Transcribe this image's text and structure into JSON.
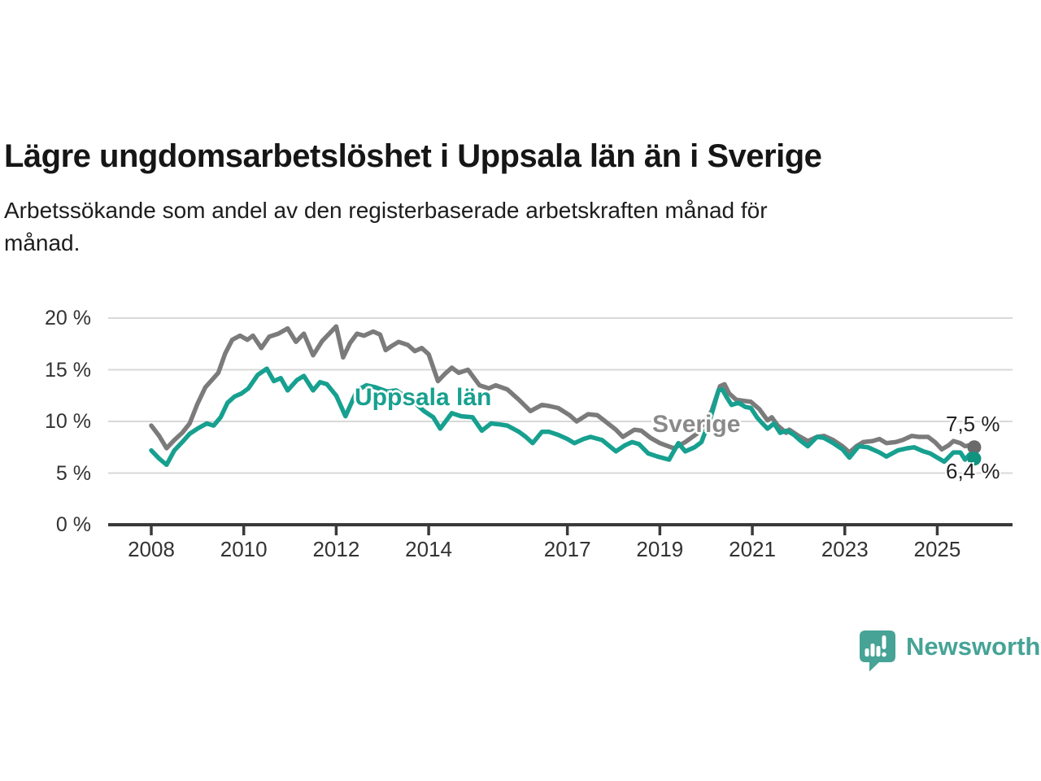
{
  "header": {
    "title": "Lägre ungdomsarbetslöshet i Uppsala län än i Sverige",
    "subtitle_lines": [
      "Arbetssökande som andel av den registerbaserade arbetskraften månad för",
      "månad."
    ]
  },
  "chart_data": {
    "type": "line",
    "title": "Lägre ungdomsarbetslöshet i Uppsala län än i Sverige",
    "x_label": "",
    "y_label": "",
    "y_unit": "%",
    "x_range": [
      2007.6,
      2026.6
    ],
    "y_range": [
      0,
      20
    ],
    "grid": "horizontal",
    "x_axis_ticks": [
      {
        "year": 2008,
        "label": "2008"
      },
      {
        "year": 2010,
        "label": "2010"
      },
      {
        "year": 2012,
        "label": "2012"
      },
      {
        "year": 2014,
        "label": "2014"
      },
      {
        "year": 2017,
        "label": "2017"
      },
      {
        "year": 2019,
        "label": "2019"
      },
      {
        "year": 2021,
        "label": "2021"
      },
      {
        "year": 2023,
        "label": "2023"
      },
      {
        "year": 2025,
        "label": "2025"
      }
    ],
    "y_axis_ticks": [
      {
        "value": 0,
        "label": "0 %"
      },
      {
        "value": 5,
        "label": "5 %"
      },
      {
        "value": 10,
        "label": "10 %"
      },
      {
        "value": 15,
        "label": "15 %"
      },
      {
        "value": 20,
        "label": "20 %"
      }
    ],
    "series": [
      {
        "name": "Sverige",
        "label": "Sverige",
        "color": "#7b7b7b",
        "label_color": "#8a8a8a",
        "dot_color": "#6a6a6a",
        "end_label": "7,5 %",
        "end_value": 7.5,
        "points": [
          [
            2008.0,
            9.6
          ],
          [
            2008.17,
            8.6
          ],
          [
            2008.33,
            7.4
          ],
          [
            2008.5,
            8.2
          ],
          [
            2008.67,
            8.9
          ],
          [
            2008.83,
            9.8
          ],
          [
            2009.0,
            11.7
          ],
          [
            2009.17,
            13.3
          ],
          [
            2009.33,
            14.1
          ],
          [
            2009.45,
            14.7
          ],
          [
            2009.6,
            16.6
          ],
          [
            2009.75,
            17.9
          ],
          [
            2009.92,
            18.3
          ],
          [
            2010.08,
            17.9
          ],
          [
            2010.2,
            18.3
          ],
          [
            2010.38,
            17.1
          ],
          [
            2010.55,
            18.2
          ],
          [
            2010.75,
            18.5
          ],
          [
            2010.95,
            19.0
          ],
          [
            2011.13,
            17.7
          ],
          [
            2011.3,
            18.5
          ],
          [
            2011.5,
            16.4
          ],
          [
            2011.7,
            17.8
          ],
          [
            2011.85,
            18.5
          ],
          [
            2012.0,
            19.2
          ],
          [
            2012.15,
            16.2
          ],
          [
            2012.3,
            17.6
          ],
          [
            2012.45,
            18.5
          ],
          [
            2012.6,
            18.3
          ],
          [
            2012.8,
            18.7
          ],
          [
            2012.95,
            18.4
          ],
          [
            2013.07,
            16.9
          ],
          [
            2013.2,
            17.3
          ],
          [
            2013.35,
            17.7
          ],
          [
            2013.55,
            17.4
          ],
          [
            2013.7,
            16.8
          ],
          [
            2013.85,
            17.1
          ],
          [
            2014.0,
            16.5
          ],
          [
            2014.2,
            13.9
          ],
          [
            2014.35,
            14.6
          ],
          [
            2014.5,
            15.2
          ],
          [
            2014.65,
            14.7
          ],
          [
            2014.85,
            15.0
          ],
          [
            2015.1,
            13.5
          ],
          [
            2015.3,
            13.2
          ],
          [
            2015.45,
            13.5
          ],
          [
            2015.7,
            13.1
          ],
          [
            2015.95,
            12.1
          ],
          [
            2016.2,
            11.0
          ],
          [
            2016.45,
            11.6
          ],
          [
            2016.6,
            11.5
          ],
          [
            2016.8,
            11.3
          ],
          [
            2017.05,
            10.6
          ],
          [
            2017.2,
            10.0
          ],
          [
            2017.45,
            10.7
          ],
          [
            2017.65,
            10.6
          ],
          [
            2017.85,
            9.9
          ],
          [
            2018.05,
            9.2
          ],
          [
            2018.2,
            8.5
          ],
          [
            2018.45,
            9.2
          ],
          [
            2018.6,
            9.1
          ],
          [
            2018.8,
            8.4
          ],
          [
            2019.0,
            7.9
          ],
          [
            2019.3,
            7.4
          ],
          [
            2019.55,
            8.0
          ],
          [
            2019.8,
            8.8
          ],
          [
            2020.0,
            10.2
          ],
          [
            2020.12,
            11.0
          ],
          [
            2020.3,
            13.4
          ],
          [
            2020.4,
            13.6
          ],
          [
            2020.5,
            12.7
          ],
          [
            2020.65,
            12.1
          ],
          [
            2020.8,
            12.0
          ],
          [
            2020.97,
            11.9
          ],
          [
            2021.15,
            11.2
          ],
          [
            2021.33,
            10.1
          ],
          [
            2021.42,
            10.4
          ],
          [
            2021.55,
            9.6
          ],
          [
            2021.73,
            8.9
          ],
          [
            2021.8,
            9.2
          ],
          [
            2022.0,
            8.6
          ],
          [
            2022.2,
            8.1
          ],
          [
            2022.4,
            8.5
          ],
          [
            2022.55,
            8.6
          ],
          [
            2022.75,
            8.2
          ],
          [
            2022.95,
            7.6
          ],
          [
            2023.1,
            7.0
          ],
          [
            2023.25,
            7.6
          ],
          [
            2023.4,
            8.0
          ],
          [
            2023.6,
            8.1
          ],
          [
            2023.75,
            8.3
          ],
          [
            2023.9,
            7.9
          ],
          [
            2024.1,
            8.0
          ],
          [
            2024.25,
            8.2
          ],
          [
            2024.45,
            8.6
          ],
          [
            2024.6,
            8.5
          ],
          [
            2024.8,
            8.5
          ],
          [
            2024.95,
            8.0
          ],
          [
            2025.1,
            7.3
          ],
          [
            2025.25,
            7.7
          ],
          [
            2025.35,
            8.1
          ],
          [
            2025.5,
            7.9
          ],
          [
            2025.6,
            7.6
          ],
          [
            2025.7,
            7.7
          ],
          [
            2025.8,
            7.5
          ]
        ]
      },
      {
        "name": "Uppsala län",
        "label": "Uppsala län",
        "color": "#17a08f",
        "label_color": "#17a08f",
        "dot_color": "#10937f",
        "end_label": "6,4 %",
        "end_value": 6.4,
        "points": [
          [
            2008.0,
            7.2
          ],
          [
            2008.17,
            6.4
          ],
          [
            2008.33,
            5.8
          ],
          [
            2008.5,
            7.2
          ],
          [
            2008.67,
            8.0
          ],
          [
            2008.83,
            8.8
          ],
          [
            2009.0,
            9.3
          ],
          [
            2009.2,
            9.8
          ],
          [
            2009.35,
            9.6
          ],
          [
            2009.5,
            10.4
          ],
          [
            2009.65,
            11.8
          ],
          [
            2009.8,
            12.4
          ],
          [
            2009.95,
            12.7
          ],
          [
            2010.1,
            13.2
          ],
          [
            2010.3,
            14.5
          ],
          [
            2010.5,
            15.1
          ],
          [
            2010.65,
            13.9
          ],
          [
            2010.8,
            14.2
          ],
          [
            2010.95,
            13.0
          ],
          [
            2011.15,
            14.0
          ],
          [
            2011.3,
            14.4
          ],
          [
            2011.5,
            13.0
          ],
          [
            2011.65,
            13.8
          ],
          [
            2011.8,
            13.6
          ],
          [
            2012.0,
            12.5
          ],
          [
            2012.2,
            10.5
          ],
          [
            2012.45,
            13.0
          ],
          [
            2012.65,
            13.5
          ],
          [
            2012.85,
            13.3
          ],
          [
            2013.1,
            12.9
          ],
          [
            2013.3,
            13.0
          ],
          [
            2013.5,
            12.4
          ],
          [
            2013.7,
            11.8
          ],
          [
            2013.9,
            11.0
          ],
          [
            2014.1,
            10.4
          ],
          [
            2014.25,
            9.3
          ],
          [
            2014.5,
            10.8
          ],
          [
            2014.7,
            10.5
          ],
          [
            2014.95,
            10.4
          ],
          [
            2015.15,
            9.1
          ],
          [
            2015.35,
            9.8
          ],
          [
            2015.55,
            9.7
          ],
          [
            2015.7,
            9.6
          ],
          [
            2015.95,
            9.0
          ],
          [
            2016.1,
            8.5
          ],
          [
            2016.25,
            7.9
          ],
          [
            2016.45,
            9.0
          ],
          [
            2016.6,
            9.0
          ],
          [
            2016.8,
            8.7
          ],
          [
            2017.0,
            8.3
          ],
          [
            2017.15,
            7.9
          ],
          [
            2017.35,
            8.3
          ],
          [
            2017.5,
            8.5
          ],
          [
            2017.75,
            8.2
          ],
          [
            2018.05,
            7.1
          ],
          [
            2018.25,
            7.7
          ],
          [
            2018.4,
            8.0
          ],
          [
            2018.55,
            7.8
          ],
          [
            2018.75,
            6.9
          ],
          [
            2018.95,
            6.6
          ],
          [
            2019.2,
            6.3
          ],
          [
            2019.4,
            7.9
          ],
          [
            2019.55,
            7.1
          ],
          [
            2019.75,
            7.5
          ],
          [
            2019.9,
            8.0
          ],
          [
            2020.1,
            10.4
          ],
          [
            2020.27,
            13.0
          ],
          [
            2020.35,
            13.1
          ],
          [
            2020.45,
            12.3
          ],
          [
            2020.55,
            11.6
          ],
          [
            2020.7,
            11.8
          ],
          [
            2020.85,
            11.4
          ],
          [
            2020.97,
            11.3
          ],
          [
            2021.1,
            10.4
          ],
          [
            2021.2,
            9.9
          ],
          [
            2021.33,
            9.3
          ],
          [
            2021.47,
            9.8
          ],
          [
            2021.6,
            8.9
          ],
          [
            2021.75,
            9.1
          ],
          [
            2021.9,
            8.7
          ],
          [
            2022.05,
            8.1
          ],
          [
            2022.2,
            7.6
          ],
          [
            2022.4,
            8.5
          ],
          [
            2022.55,
            8.4
          ],
          [
            2022.75,
            7.9
          ],
          [
            2022.95,
            7.3
          ],
          [
            2023.1,
            6.5
          ],
          [
            2023.3,
            7.6
          ],
          [
            2023.5,
            7.5
          ],
          [
            2023.75,
            7.0
          ],
          [
            2023.9,
            6.6
          ],
          [
            2024.15,
            7.2
          ],
          [
            2024.35,
            7.4
          ],
          [
            2024.5,
            7.5
          ],
          [
            2024.7,
            7.1
          ],
          [
            2024.85,
            6.9
          ],
          [
            2025.0,
            6.5
          ],
          [
            2025.15,
            6.1
          ],
          [
            2025.35,
            7.0
          ],
          [
            2025.5,
            7.0
          ],
          [
            2025.6,
            6.3
          ],
          [
            2025.7,
            6.8
          ],
          [
            2025.8,
            6.4
          ]
        ]
      }
    ]
  },
  "footer": {
    "logo_text": "Newsworthy",
    "logo_color": "#46a396"
  }
}
